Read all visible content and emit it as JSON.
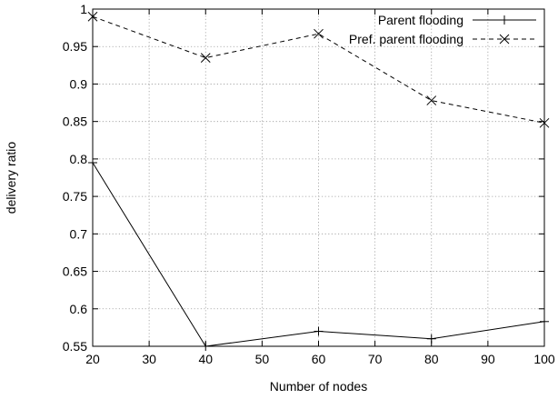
{
  "chart_data": {
    "type": "line",
    "xlabel": "Number of nodes",
    "ylabel": "delivery ratio",
    "xlim": [
      20,
      100
    ],
    "ylim": [
      0.55,
      1
    ],
    "xticks": [
      "20",
      "30",
      "40",
      "50",
      "60",
      "70",
      "80",
      "90",
      "100"
    ],
    "yticks": [
      "0.55",
      "0.6",
      "0.65",
      "0.7",
      "0.75",
      "0.8",
      "0.85",
      "0.9",
      "0.95",
      "1"
    ],
    "grid": true,
    "legend_position": "top-right",
    "series": [
      {
        "name": "Parent flooding",
        "marker": "plus",
        "line_style": "solid",
        "points": [
          {
            "x": 20,
            "y": 0.795
          },
          {
            "x": 40,
            "y": 0.55
          },
          {
            "x": 60,
            "y": 0.57
          },
          {
            "x": 80,
            "y": 0.56
          },
          {
            "x": 100,
            "y": 0.583
          }
        ]
      },
      {
        "name": "Pref. parent flooding",
        "marker": "cross",
        "line_style": "dashed",
        "points": [
          {
            "x": 20,
            "y": 0.99
          },
          {
            "x": 40,
            "y": 0.935
          },
          {
            "x": 60,
            "y": 0.967
          },
          {
            "x": 80,
            "y": 0.878
          },
          {
            "x": 100,
            "y": 0.848
          }
        ]
      }
    ]
  }
}
